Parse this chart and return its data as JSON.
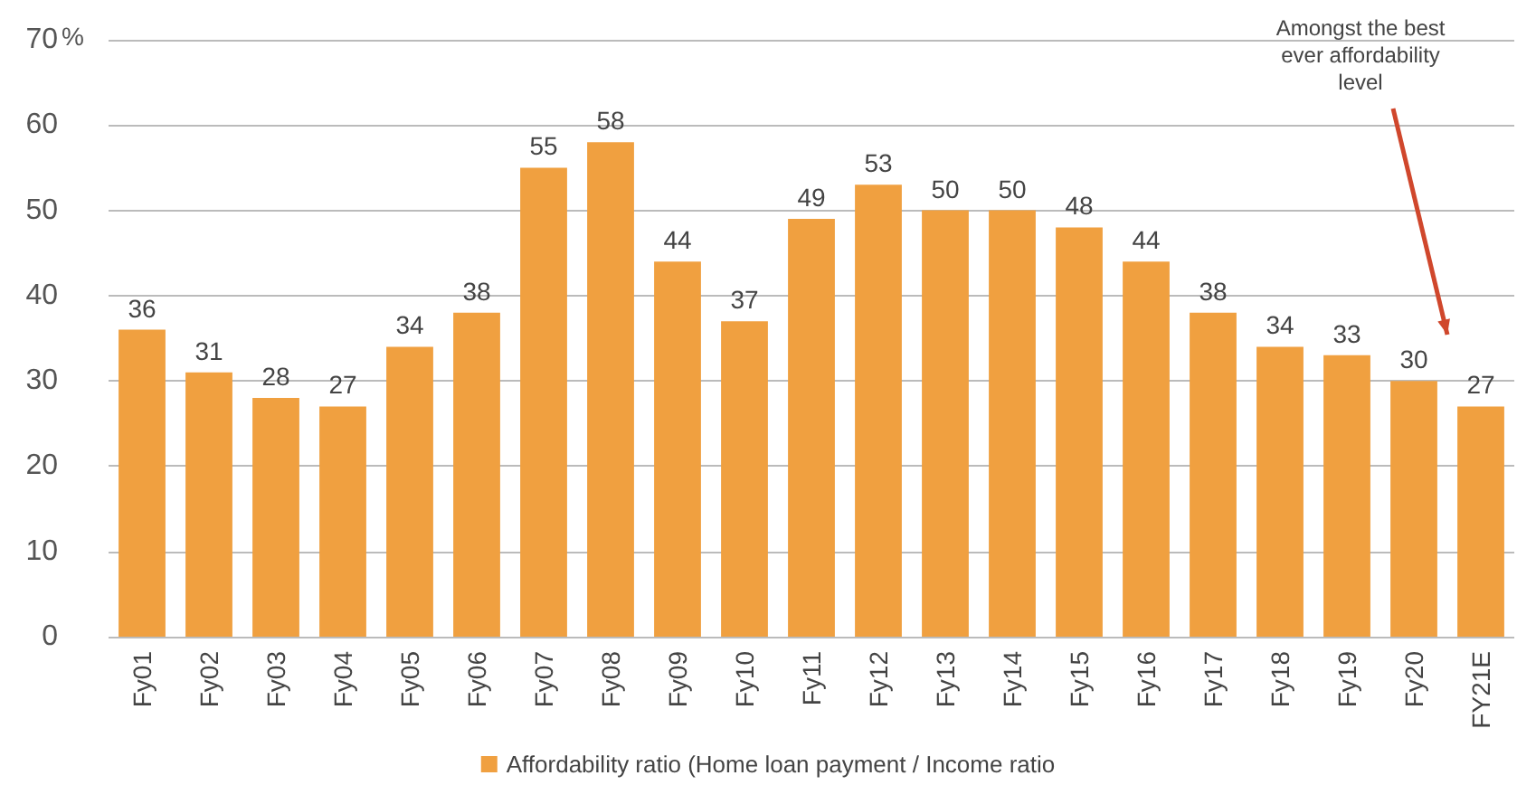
{
  "chart_data": {
    "type": "bar",
    "ylabel": "%",
    "categories": [
      "Fy01",
      "Fy02",
      "Fy03",
      "Fy04",
      "Fy05",
      "Fy06",
      "Fy07",
      "Fy08",
      "Fy09",
      "Fy10",
      "Fy11",
      "Fy12",
      "Fy13",
      "Fy14",
      "Fy15",
      "Fy16",
      "Fy17",
      "Fy18",
      "Fy19",
      "Fy20",
      "FY21E"
    ],
    "series": [
      {
        "name": "Affordability ratio (Home loan payment / Income ratio",
        "color": "#f0a040",
        "values": [
          36,
          31,
          28,
          27,
          34,
          38,
          55,
          58,
          44,
          37,
          49,
          53,
          50,
          50,
          48,
          44,
          38,
          34,
          33,
          30,
          27
        ]
      }
    ],
    "ylim": [
      0,
      70
    ],
    "yticks": [
      0,
      10,
      20,
      30,
      40,
      50,
      60,
      70
    ],
    "annotations": [
      "Amongst the best\never affordability\nlevel"
    ],
    "data_labels": true,
    "grid": "y",
    "legend": "bottom"
  }
}
